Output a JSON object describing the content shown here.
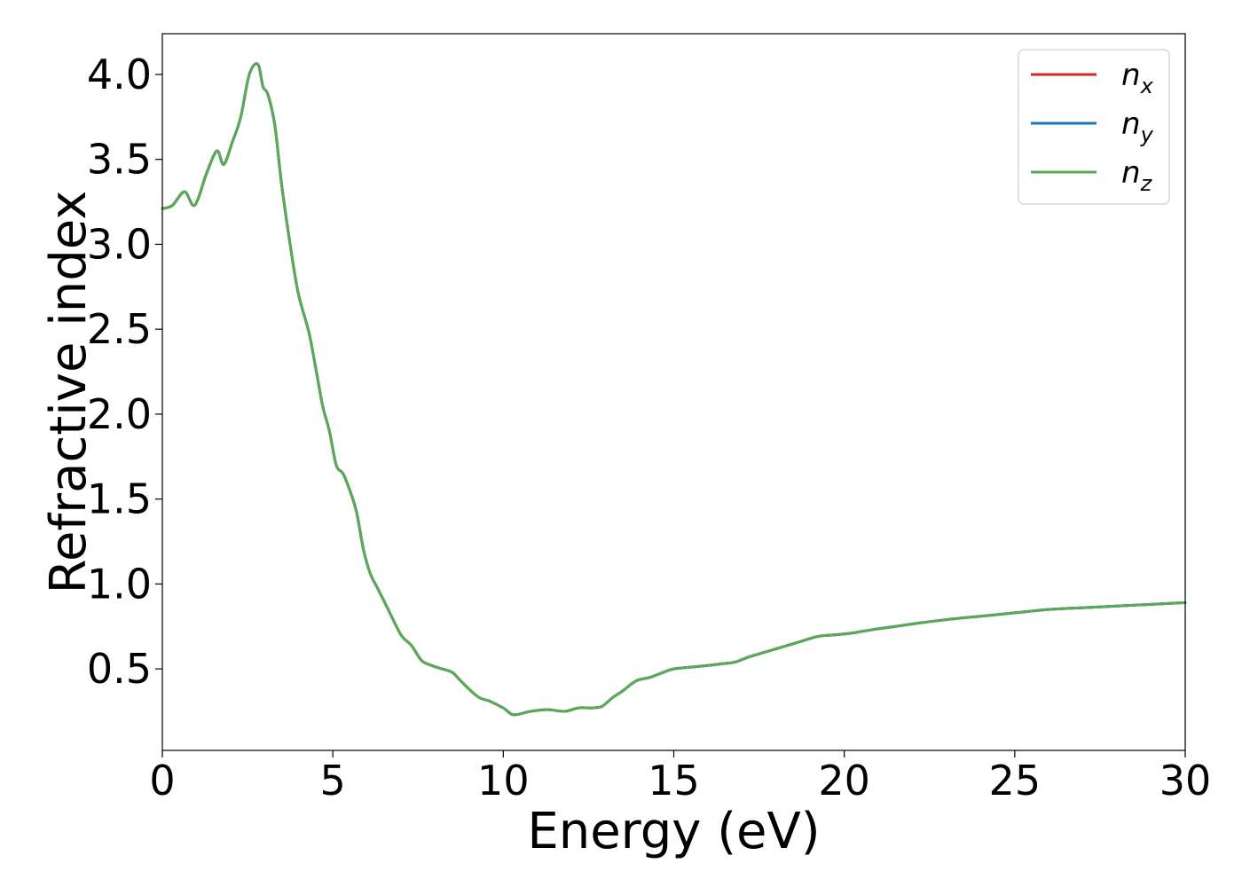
{
  "chart_data": {
    "type": "line",
    "xlabel": "Energy (eV)",
    "ylabel": "Refractive index",
    "xlim": [
      0,
      30
    ],
    "ylim": [
      0.02,
      4.24
    ],
    "xticks": [
      0,
      5,
      10,
      15,
      20,
      25,
      30
    ],
    "xtick_labels": [
      "0",
      "5",
      "10",
      "15",
      "20",
      "25",
      "30"
    ],
    "yticks": [
      0.5,
      1.0,
      1.5,
      2.0,
      2.5,
      3.0,
      3.5,
      4.0
    ],
    "ytick_labels": [
      "0.5",
      "1.0",
      "1.5",
      "2.0",
      "2.5",
      "3.0",
      "3.5",
      "4.0"
    ],
    "grid": false,
    "legend_position": "top-right",
    "series": [
      {
        "name": "n_x",
        "label_base": "n",
        "label_sub": "x",
        "color": "#d62728",
        "x": [
          0,
          0.3,
          0.65,
          0.95,
          1.3,
          1.6,
          1.8,
          2.05,
          2.3,
          2.55,
          2.8,
          2.95,
          3.1,
          3.3,
          3.5,
          3.8,
          4.0,
          4.3,
          4.5,
          4.7,
          4.9,
          5.1,
          5.3,
          5.5,
          5.7,
          5.9,
          6.1,
          6.3,
          6.6,
          7.0,
          7.3,
          7.6,
          7.9,
          8.2,
          8.5,
          8.7,
          9.0,
          9.3,
          9.6,
          10.0,
          10.3,
          10.8,
          11.3,
          11.8,
          12.2,
          12.6,
          12.9,
          13.2,
          13.5,
          13.9,
          14.3,
          14.7,
          15.0,
          15.5,
          16.0,
          16.4,
          16.8,
          17.2,
          17.7,
          18.2,
          18.7,
          19.2,
          19.7,
          20.2,
          20.8,
          21.5,
          22.2,
          23.0,
          24.0,
          25.0,
          26.0,
          27.0,
          28.0,
          29.0,
          30.0
        ],
        "values": [
          3.21,
          3.23,
          3.31,
          3.23,
          3.42,
          3.55,
          3.47,
          3.6,
          3.75,
          4.0,
          4.06,
          3.93,
          3.88,
          3.7,
          3.35,
          2.93,
          2.7,
          2.48,
          2.27,
          2.05,
          1.9,
          1.7,
          1.65,
          1.55,
          1.42,
          1.2,
          1.06,
          0.98,
          0.86,
          0.7,
          0.64,
          0.55,
          0.52,
          0.5,
          0.48,
          0.44,
          0.38,
          0.33,
          0.31,
          0.27,
          0.23,
          0.25,
          0.26,
          0.25,
          0.27,
          0.27,
          0.28,
          0.33,
          0.37,
          0.43,
          0.45,
          0.48,
          0.5,
          0.51,
          0.52,
          0.53,
          0.54,
          0.57,
          0.6,
          0.63,
          0.66,
          0.69,
          0.7,
          0.71,
          0.73,
          0.75,
          0.77,
          0.79,
          0.81,
          0.83,
          0.85,
          0.86,
          0.87,
          0.88,
          0.89
        ]
      },
      {
        "name": "n_y",
        "label_base": "n",
        "label_sub": "y",
        "color": "#1f77b4",
        "x": [
          0,
          0.3,
          0.65,
          0.95,
          1.3,
          1.6,
          1.8,
          2.05,
          2.3,
          2.55,
          2.8,
          2.95,
          3.1,
          3.3,
          3.5,
          3.8,
          4.0,
          4.3,
          4.5,
          4.7,
          4.9,
          5.1,
          5.3,
          5.5,
          5.7,
          5.9,
          6.1,
          6.3,
          6.6,
          7.0,
          7.3,
          7.6,
          7.9,
          8.2,
          8.5,
          8.7,
          9.0,
          9.3,
          9.6,
          10.0,
          10.3,
          10.8,
          11.3,
          11.8,
          12.2,
          12.6,
          12.9,
          13.2,
          13.5,
          13.9,
          14.3,
          14.7,
          15.0,
          15.5,
          16.0,
          16.4,
          16.8,
          17.2,
          17.7,
          18.2,
          18.7,
          19.2,
          19.7,
          20.2,
          20.8,
          21.5,
          22.2,
          23.0,
          24.0,
          25.0,
          26.0,
          27.0,
          28.0,
          29.0,
          30.0
        ],
        "values": [
          3.21,
          3.23,
          3.31,
          3.23,
          3.42,
          3.55,
          3.47,
          3.6,
          3.75,
          4.0,
          4.06,
          3.93,
          3.88,
          3.7,
          3.35,
          2.93,
          2.7,
          2.48,
          2.27,
          2.05,
          1.9,
          1.7,
          1.65,
          1.55,
          1.42,
          1.2,
          1.06,
          0.98,
          0.86,
          0.7,
          0.64,
          0.55,
          0.52,
          0.5,
          0.48,
          0.44,
          0.38,
          0.33,
          0.31,
          0.27,
          0.23,
          0.25,
          0.26,
          0.25,
          0.27,
          0.27,
          0.28,
          0.33,
          0.37,
          0.43,
          0.45,
          0.48,
          0.5,
          0.51,
          0.52,
          0.53,
          0.54,
          0.57,
          0.6,
          0.63,
          0.66,
          0.69,
          0.7,
          0.71,
          0.73,
          0.75,
          0.77,
          0.79,
          0.81,
          0.83,
          0.85,
          0.86,
          0.87,
          0.88,
          0.89
        ]
      },
      {
        "name": "n_z",
        "label_base": "n",
        "label_sub": "z",
        "color": "#5aaa55",
        "x": [
          0,
          0.3,
          0.65,
          0.95,
          1.3,
          1.6,
          1.8,
          2.05,
          2.3,
          2.55,
          2.8,
          2.95,
          3.1,
          3.3,
          3.5,
          3.8,
          4.0,
          4.3,
          4.5,
          4.7,
          4.9,
          5.1,
          5.3,
          5.5,
          5.7,
          5.9,
          6.1,
          6.3,
          6.6,
          7.0,
          7.3,
          7.6,
          7.9,
          8.2,
          8.5,
          8.7,
          9.0,
          9.3,
          9.6,
          10.0,
          10.3,
          10.8,
          11.3,
          11.8,
          12.2,
          12.6,
          12.9,
          13.2,
          13.5,
          13.9,
          14.3,
          14.7,
          15.0,
          15.5,
          16.0,
          16.4,
          16.8,
          17.2,
          17.7,
          18.2,
          18.7,
          19.2,
          19.7,
          20.2,
          20.8,
          21.5,
          22.2,
          23.0,
          24.0,
          25.0,
          26.0,
          27.0,
          28.0,
          29.0,
          30.0
        ],
        "values": [
          3.21,
          3.23,
          3.31,
          3.23,
          3.42,
          3.55,
          3.47,
          3.6,
          3.75,
          4.0,
          4.06,
          3.93,
          3.88,
          3.7,
          3.35,
          2.93,
          2.7,
          2.48,
          2.27,
          2.05,
          1.9,
          1.7,
          1.65,
          1.55,
          1.42,
          1.2,
          1.06,
          0.98,
          0.86,
          0.7,
          0.64,
          0.55,
          0.52,
          0.5,
          0.48,
          0.44,
          0.38,
          0.33,
          0.31,
          0.27,
          0.23,
          0.25,
          0.26,
          0.25,
          0.27,
          0.27,
          0.28,
          0.33,
          0.37,
          0.43,
          0.45,
          0.48,
          0.5,
          0.51,
          0.52,
          0.53,
          0.54,
          0.57,
          0.6,
          0.63,
          0.66,
          0.69,
          0.7,
          0.71,
          0.73,
          0.75,
          0.77,
          0.79,
          0.81,
          0.83,
          0.85,
          0.86,
          0.87,
          0.88,
          0.89
        ]
      }
    ]
  }
}
